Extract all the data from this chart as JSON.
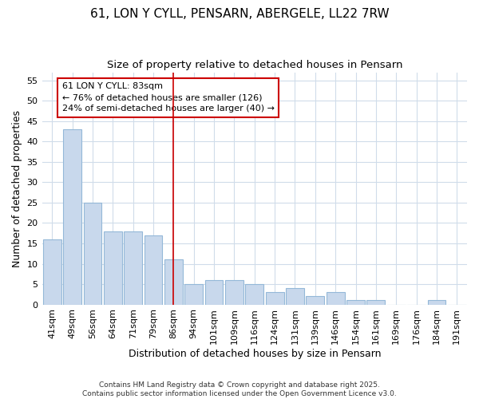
{
  "title": "61, LON Y CYLL, PENSARN, ABERGELE, LL22 7RW",
  "subtitle": "Size of property relative to detached houses in Pensarn",
  "xlabel": "Distribution of detached houses by size in Pensarn",
  "ylabel": "Number of detached properties",
  "categories": [
    "41sqm",
    "49sqm",
    "56sqm",
    "64sqm",
    "71sqm",
    "79sqm",
    "86sqm",
    "94sqm",
    "101sqm",
    "109sqm",
    "116sqm",
    "124sqm",
    "131sqm",
    "139sqm",
    "146sqm",
    "154sqm",
    "161sqm",
    "169sqm",
    "176sqm",
    "184sqm",
    "191sqm"
  ],
  "values": [
    16,
    43,
    25,
    18,
    18,
    17,
    11,
    5,
    6,
    6,
    5,
    3,
    4,
    2,
    3,
    1,
    1,
    0,
    0,
    1,
    0
  ],
  "bar_color": "#c8d8ec",
  "bar_edge_color": "#94b8d8",
  "background_color": "#ffffff",
  "grid_color": "#d0dcea",
  "vline_x": 6,
  "vline_color": "#cc0000",
  "annotation_line1": "61 LON Y CYLL: 83sqm",
  "annotation_line2": "← 76% of detached houses are smaller (126)",
  "annotation_line3": "24% of semi-detached houses are larger (40) →",
  "annotation_box_color": "#cc0000",
  "ylim": [
    0,
    57
  ],
  "yticks": [
    0,
    5,
    10,
    15,
    20,
    25,
    30,
    35,
    40,
    45,
    50,
    55
  ],
  "footer": "Contains HM Land Registry data © Crown copyright and database right 2025.\nContains public sector information licensed under the Open Government Licence v3.0.",
  "title_fontsize": 11,
  "subtitle_fontsize": 9.5,
  "axis_label_fontsize": 9,
  "tick_fontsize": 8,
  "annotation_fontsize": 8,
  "footer_fontsize": 6.5
}
